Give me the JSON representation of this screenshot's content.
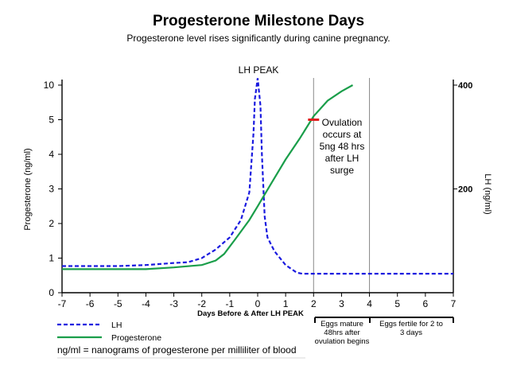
{
  "chart_data": {
    "type": "line",
    "title": "Progesterone Milestone Days",
    "subtitle": "Progesterone level rises significantly during canine pregnancy.",
    "xlabel": "Days Before & After LH PEAK",
    "ylabel": "Progesterone (ng/ml)",
    "y2label": "LH (ng/ml)",
    "xlim": [
      -7,
      7
    ],
    "ylim": [
      0,
      10
    ],
    "x_ticks": [
      "-7",
      "-6",
      "-5",
      "-4",
      "-3",
      "-2",
      "-1",
      "0",
      "1",
      "2",
      "3",
      "4",
      "5",
      "6",
      "7"
    ],
    "y_ticks": [
      "0",
      "1",
      "2",
      "3",
      "4",
      "5",
      "10"
    ],
    "y_tick_values": [
      0,
      1,
      2,
      3,
      4,
      5,
      6
    ],
    "y2_ticks": [
      "200",
      "400"
    ],
    "y2_tick_values": [
      3,
      6
    ],
    "grid": false,
    "vlines": [
      2,
      4
    ],
    "series": [
      {
        "name": "LH",
        "style": "dashed",
        "color": "#1a1adf",
        "points": [
          [
            -7,
            0.77
          ],
          [
            -5,
            0.77
          ],
          [
            -4,
            0.8
          ],
          [
            -3,
            0.86
          ],
          [
            -2.5,
            0.88
          ],
          [
            -2,
            1.0
          ],
          [
            -1.5,
            1.25
          ],
          [
            -1,
            1.6
          ],
          [
            -0.6,
            2.1
          ],
          [
            -0.3,
            2.9
          ],
          [
            -0.15,
            4.6
          ],
          [
            -0.1,
            5.6
          ],
          [
            0.0,
            6.2
          ],
          [
            0.1,
            5.4
          ],
          [
            0.15,
            4.0
          ],
          [
            0.25,
            2.2
          ],
          [
            0.35,
            1.6
          ],
          [
            0.6,
            1.2
          ],
          [
            1.0,
            0.8
          ],
          [
            1.4,
            0.58
          ],
          [
            1.6,
            0.55
          ],
          [
            2,
            0.55
          ],
          [
            4,
            0.55
          ],
          [
            7,
            0.55
          ]
        ]
      },
      {
        "name": "Progesterone",
        "style": "solid",
        "color": "#1a9e4a",
        "points": [
          [
            -7,
            0.68
          ],
          [
            -4,
            0.68
          ],
          [
            -3,
            0.73
          ],
          [
            -2,
            0.8
          ],
          [
            -1.5,
            0.93
          ],
          [
            -1.2,
            1.12
          ],
          [
            -0.8,
            1.55
          ],
          [
            -0.3,
            2.1
          ],
          [
            0.0,
            2.5
          ],
          [
            0.5,
            3.18
          ],
          [
            1.0,
            3.85
          ],
          [
            1.5,
            4.45
          ],
          [
            2.0,
            5.1
          ],
          [
            2.5,
            5.55
          ],
          [
            3.0,
            5.82
          ],
          [
            3.4,
            6.0
          ]
        ]
      }
    ],
    "annotations": {
      "lh_peak": "LH PEAK",
      "ovulation": [
        "Ovulation",
        "occurs at",
        "5ng 48 hrs",
        "after LH",
        "surge"
      ],
      "ovulation_marker": {
        "x": 2,
        "y": 5
      },
      "eggs_mature": [
        "Eggs mature",
        "48hrs after",
        "ovulation begins"
      ],
      "eggs_fertile": [
        "Eggs fertile for 2 to",
        "3 days"
      ]
    },
    "legend": {
      "placement": "bottom-left",
      "entries": [
        "LH",
        "Progesterone"
      ]
    },
    "footnote": "ng/ml = nanograms of progesterone per milliliter of blood"
  },
  "colors": {
    "lh": "#1a1adf",
    "progesterone": "#1a9e4a",
    "marker": "#e02020",
    "vline": "#888888"
  }
}
